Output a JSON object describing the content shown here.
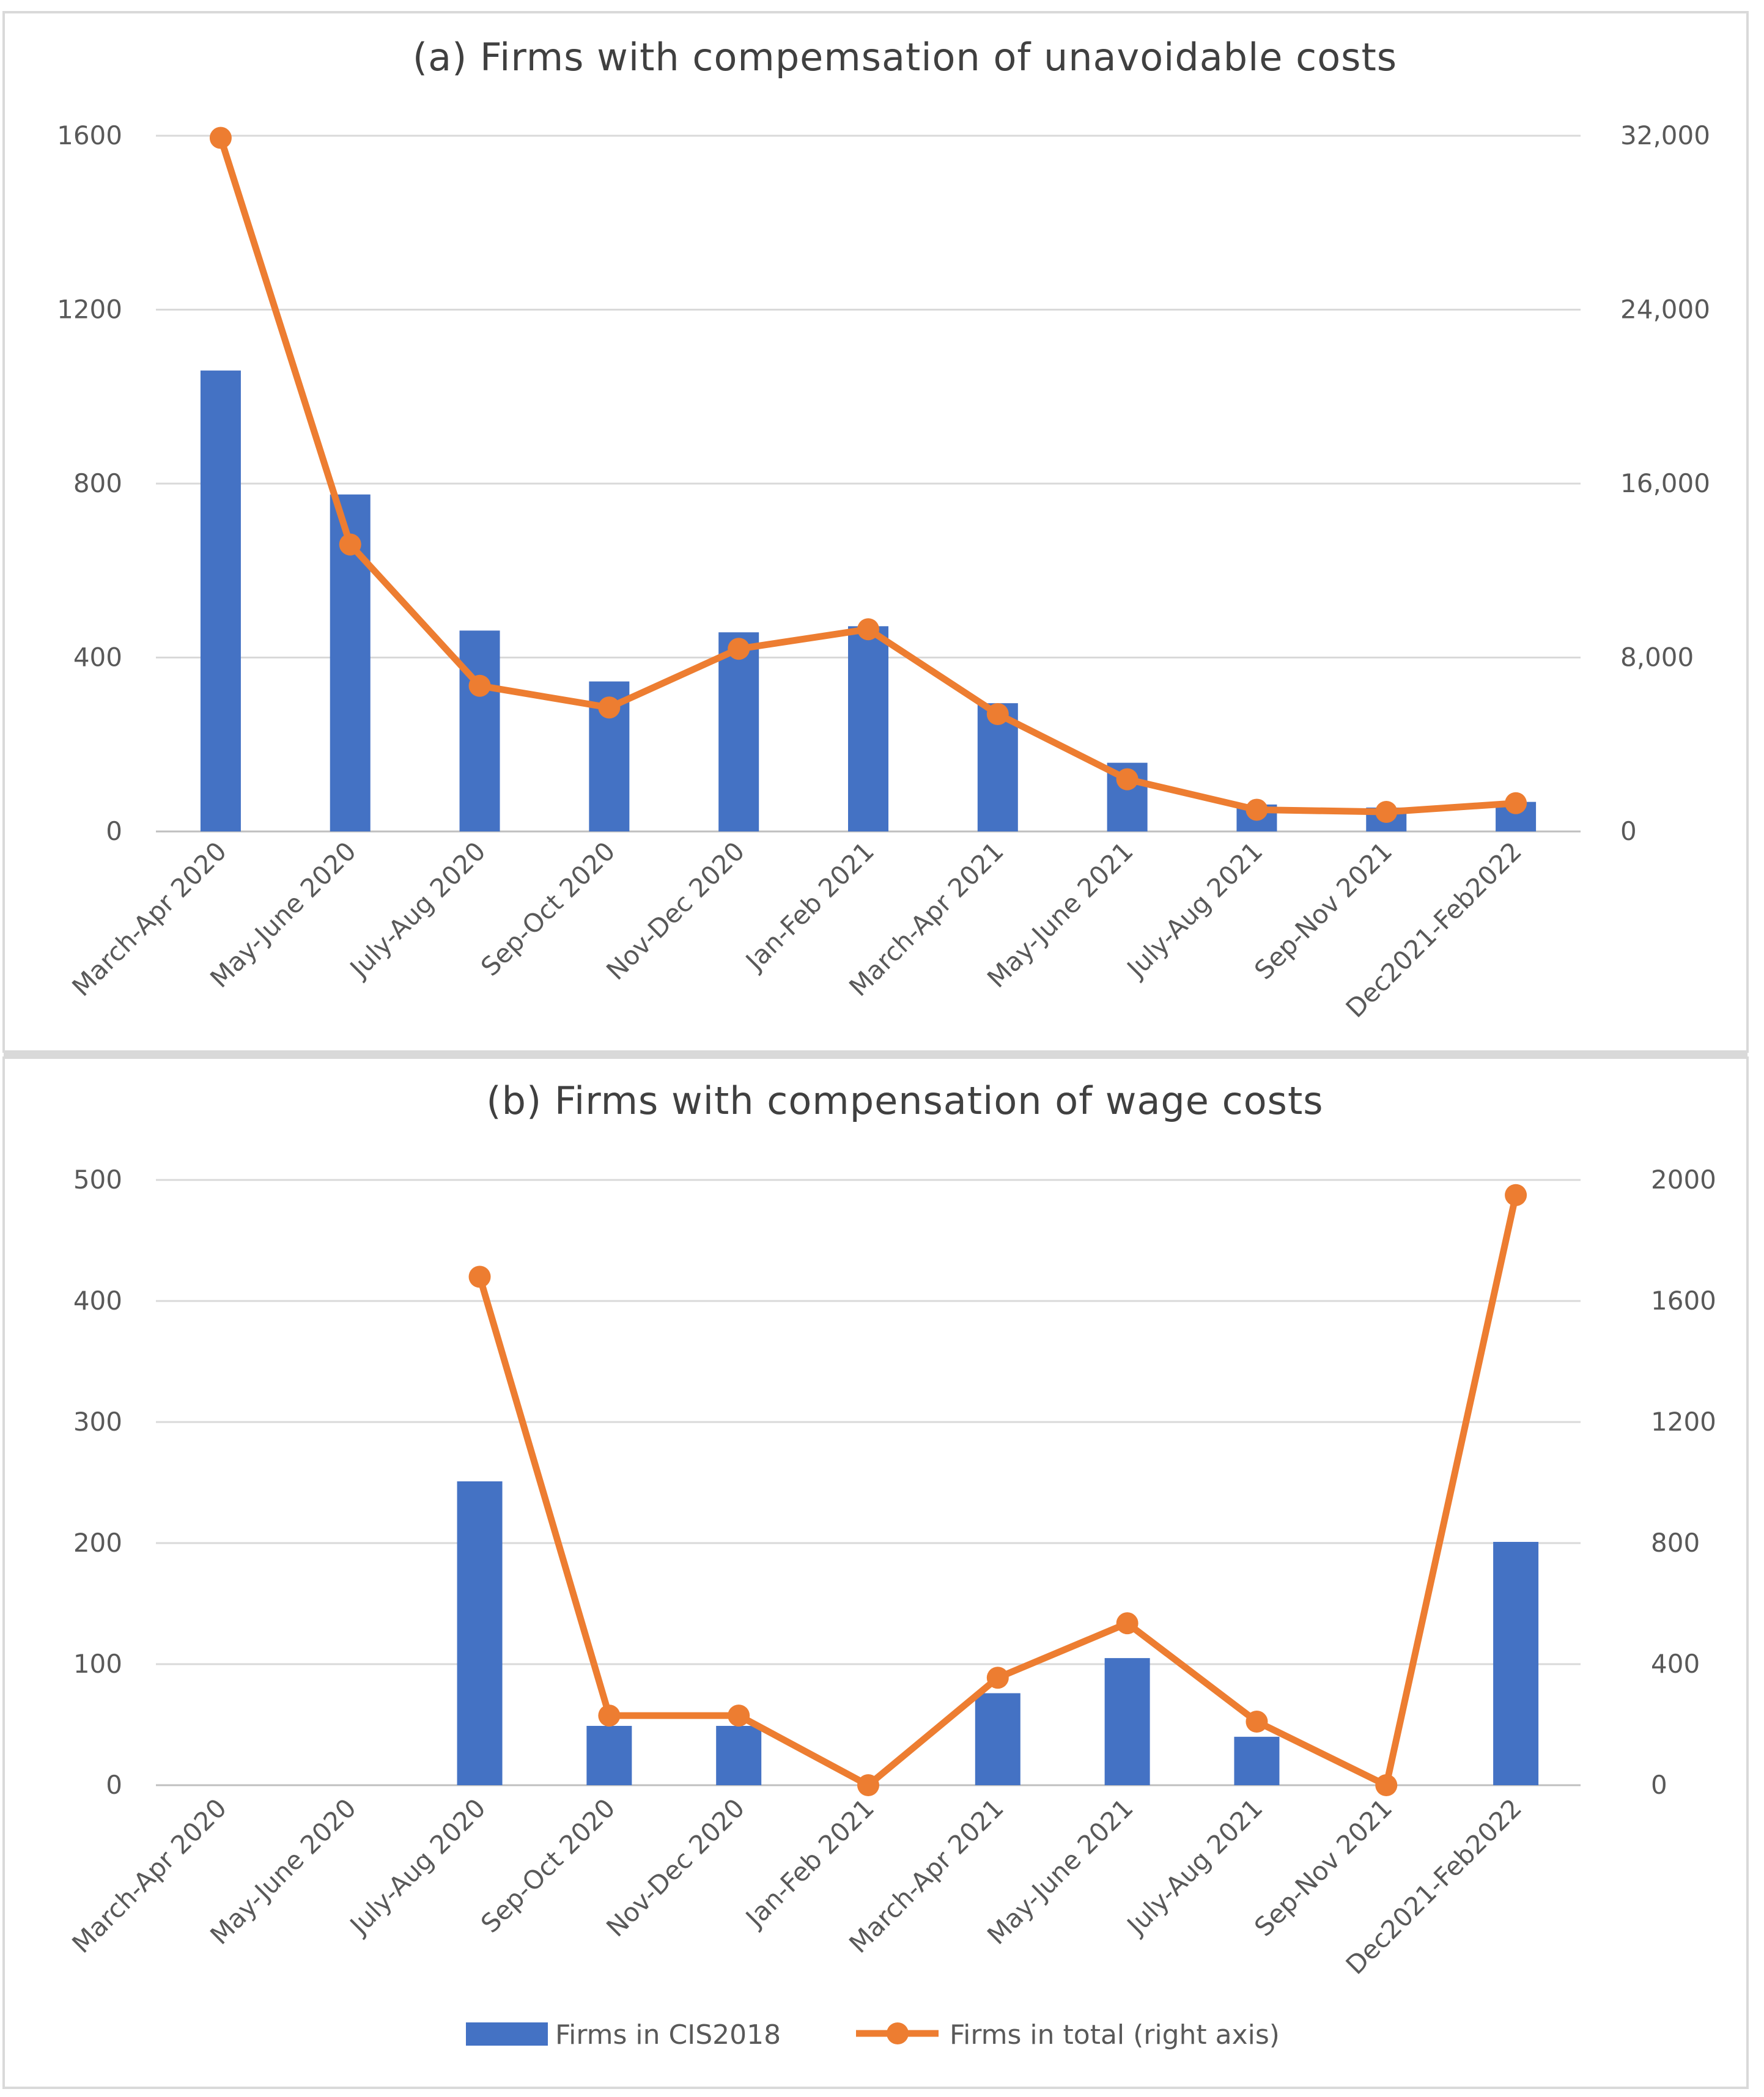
{
  "chart_data": [
    {
      "type": "bar+line",
      "title": "(a) Firms with compemsation of unavoidable costs",
      "categories": [
        "March-Apr 2020",
        "May-June 2020",
        "July-Aug 2020",
        "Sep-Oct 2020",
        "Nov-Dec 2020",
        "Jan-Feb 2021",
        "March-Apr 2021",
        "May-June 2021",
        "July-Aug 2021",
        "Sep-Nov 2021",
        "Dec2021-Feb2022"
      ],
      "series": [
        {
          "name": "Firms in CIS2018",
          "kind": "bar",
          "axis": "left",
          "color": "#4472c4",
          "values": [
            1060,
            775,
            462,
            345,
            458,
            472,
            295,
            158,
            62,
            55,
            68
          ]
        },
        {
          "name": "Firms in total (right axis)",
          "kind": "line",
          "axis": "right",
          "color": "#ed7d31",
          "values": [
            31900,
            13200,
            6700,
            5700,
            8400,
            9300,
            5400,
            2400,
            1000,
            900,
            1300
          ]
        }
      ],
      "left_axis": {
        "min": 0,
        "max": 1600,
        "ticks": [
          "0",
          "400",
          "800",
          "1200",
          "1600"
        ]
      },
      "right_axis": {
        "min": 0,
        "max": 32000,
        "ticks": [
          "0",
          "8,000",
          "16,000",
          "24,000",
          "32,000"
        ]
      },
      "grid": true
    },
    {
      "type": "bar+line",
      "title": "(b) Firms with compensation of wage costs",
      "categories": [
        "March-Apr 2020",
        "May-June 2020",
        "July-Aug 2020",
        "Sep-Oct 2020",
        "Nov-Dec 2020",
        "Jan-Feb 2021",
        "March-Apr 2021",
        "May-June 2021",
        "July-Aug 2021",
        "Sep-Nov 2021",
        "Dec2021-Feb2022"
      ],
      "series": [
        {
          "name": "Firms in CIS2018",
          "kind": "bar",
          "axis": "left",
          "color": "#4472c4",
          "values": [
            null,
            null,
            251,
            49,
            49,
            null,
            76,
            105,
            40,
            null,
            201
          ]
        },
        {
          "name": "Firms in total (right axis)",
          "kind": "line",
          "axis": "right",
          "color": "#ed7d31",
          "values": [
            null,
            null,
            1680,
            230,
            230,
            0,
            355,
            535,
            210,
            0,
            1950
          ]
        }
      ],
      "left_axis": {
        "min": 0,
        "max": 500,
        "ticks": [
          "0",
          "100",
          "200",
          "300",
          "400",
          "500"
        ]
      },
      "right_axis": {
        "min": 0,
        "max": 2000,
        "ticks": [
          "0",
          "400",
          "800",
          "1200",
          "1600",
          "2000"
        ]
      },
      "grid": true,
      "legend": {
        "position": "bottom",
        "entries": [
          "Firms in CIS2018",
          "Firms in total (right axis)"
        ]
      }
    }
  ]
}
